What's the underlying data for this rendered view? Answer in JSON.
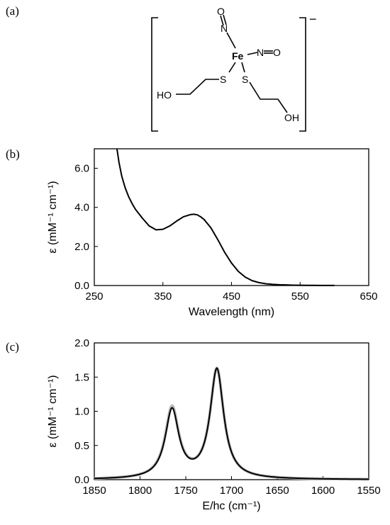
{
  "panels": {
    "a": {
      "label": "(a)"
    },
    "b": {
      "label": "(b)"
    },
    "c": {
      "label": "(c)"
    }
  },
  "structure": {
    "charge": "−",
    "atoms": {
      "fe": "Fe",
      "n1": "N",
      "o1": "O",
      "n2": "N",
      "o2": "O",
      "s1": "S",
      "s2": "S",
      "ho_left": "HO",
      "oh_right": "OH"
    }
  },
  "chart_data": [
    {
      "type": "line",
      "panel": "b",
      "xlabel": "Wavelength (nm)",
      "ylabel": "ε (mM⁻¹ cm⁻¹)",
      "xlim": [
        250,
        650
      ],
      "ylim": [
        0,
        7
      ],
      "xticks": [
        250,
        350,
        450,
        550,
        650
      ],
      "yticks": [
        0.0,
        2.0,
        4.0,
        6.0
      ],
      "ytick_labels": [
        "0.0",
        "2.0",
        "4.0",
        "6.0"
      ],
      "grid": false,
      "series": [
        {
          "color": "#000000",
          "x": [
            283,
            286,
            290,
            295,
            300,
            305,
            310,
            320,
            330,
            340,
            350,
            360,
            370,
            380,
            390,
            395,
            400,
            405,
            410,
            420,
            430,
            440,
            450,
            460,
            470,
            480,
            490,
            500,
            510,
            520,
            530,
            540,
            550,
            560,
            570,
            580,
            590,
            600
          ],
          "y": [
            7.0,
            6.3,
            5.6,
            5.0,
            4.55,
            4.2,
            3.9,
            3.45,
            3.05,
            2.85,
            2.88,
            3.05,
            3.3,
            3.52,
            3.63,
            3.65,
            3.62,
            3.52,
            3.38,
            2.95,
            2.35,
            1.7,
            1.15,
            0.72,
            0.43,
            0.25,
            0.15,
            0.09,
            0.06,
            0.04,
            0.03,
            0.02,
            0.015,
            0.01,
            0.008,
            0.006,
            0.005,
            0.004
          ]
        }
      ]
    },
    {
      "type": "line",
      "panel": "c",
      "xlabel": "E/hc (cm⁻¹)",
      "ylabel": "ε (mM⁻¹ cm⁻¹)",
      "xlim": [
        1850,
        1550
      ],
      "x_reversed": true,
      "ylim": [
        0,
        2
      ],
      "xticks": [
        1850,
        1800,
        1750,
        1700,
        1650,
        1600,
        1550
      ],
      "yticks": [
        0.0,
        0.5,
        1.0,
        1.5,
        2.0
      ],
      "ytick_labels": [
        "0.0",
        "0.5",
        "1.0",
        "1.5",
        "2.0"
      ],
      "grid": false,
      "series": [
        {
          "style": "fit",
          "color": "#bbbbbb",
          "peaks": [
            {
              "center": 1765,
              "height": 1.03,
              "hwhm": 9
            },
            {
              "center": 1716,
              "height": 1.6,
              "hwhm": 9
            }
          ]
        },
        {
          "style": "data",
          "color": "#000000",
          "peaks": [
            {
              "center": 1765,
              "height": 1.0,
              "hwhm": 9
            },
            {
              "center": 1716,
              "height": 1.6,
              "hwhm": 9
            }
          ]
        }
      ]
    }
  ]
}
